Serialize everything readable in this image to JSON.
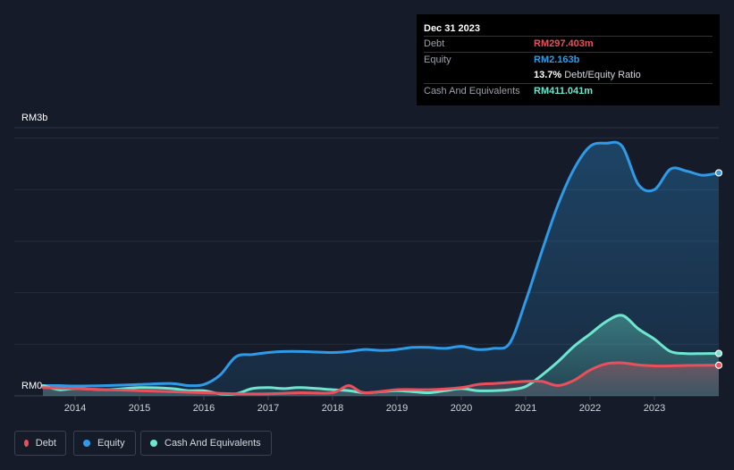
{
  "tooltip": {
    "date": "Dec 31 2023",
    "rows": [
      {
        "label": "Debt",
        "value": "RM297.403m",
        "color": "#e8505b"
      },
      {
        "label": "Equity",
        "value": "RM2.163b",
        "color": "#2f9be8"
      },
      {
        "label": "",
        "value": "13.7%",
        "suffix": "Debt/Equity Ratio",
        "color": "#ffffff"
      },
      {
        "label": "Cash And Equivalents",
        "value": "RM411.041m",
        "color": "#6ee6cf"
      }
    ]
  },
  "legend": [
    {
      "label": "Debt",
      "color": "#e8505b"
    },
    {
      "label": "Equity",
      "color": "#2f9be8"
    },
    {
      "label": "Cash And Equivalents",
      "color": "#6ee6cf"
    }
  ],
  "chart_data": {
    "type": "area",
    "title": "",
    "xlabel": "",
    "ylabel": "",
    "y_top_label": "RM3b",
    "y_bottom_label": "RM0",
    "ylim": [
      0,
      2.6
    ],
    "xlim": [
      2013.5,
      2024.0
    ],
    "x_ticks": [
      "2014",
      "2015",
      "2016",
      "2017",
      "2018",
      "2019",
      "2020",
      "2021",
      "2022",
      "2023"
    ],
    "gridlines": [
      0.5,
      1.0,
      1.5,
      2.0,
      2.5
    ],
    "series": [
      {
        "name": "Equity",
        "color": "#2f9be8",
        "x": [
          2013.5,
          2013.75,
          2014.0,
          2014.5,
          2015.0,
          2015.5,
          2015.75,
          2016.0,
          2016.25,
          2016.5,
          2016.75,
          2017.0,
          2017.25,
          2017.5,
          2018.0,
          2018.25,
          2018.5,
          2018.75,
          2019.0,
          2019.25,
          2019.5,
          2019.75,
          2020.0,
          2020.25,
          2020.5,
          2020.75,
          2021.0,
          2021.25,
          2021.5,
          2021.75,
          2022.0,
          2022.25,
          2022.5,
          2022.75,
          2023.0,
          2023.25,
          2023.5,
          2023.75,
          2024.0
        ],
        "values": [
          0.1,
          0.1,
          0.095,
          0.1,
          0.11,
          0.12,
          0.1,
          0.11,
          0.2,
          0.38,
          0.4,
          0.42,
          0.43,
          0.43,
          0.42,
          0.43,
          0.45,
          0.44,
          0.45,
          0.47,
          0.47,
          0.46,
          0.48,
          0.45,
          0.46,
          0.51,
          0.92,
          1.4,
          1.85,
          2.2,
          2.42,
          2.45,
          2.42,
          2.05,
          2.0,
          2.2,
          2.18,
          2.14,
          2.163
        ]
      },
      {
        "name": "Cash And Equivalents",
        "color": "#6ee6cf",
        "x": [
          2013.5,
          2013.75,
          2014.0,
          2014.5,
          2015.0,
          2015.5,
          2015.75,
          2016.0,
          2016.25,
          2016.5,
          2016.75,
          2017.0,
          2017.25,
          2017.5,
          2018.0,
          2018.25,
          2018.5,
          2018.75,
          2019.0,
          2019.25,
          2019.5,
          2019.75,
          2020.0,
          2020.25,
          2020.5,
          2020.75,
          2021.0,
          2021.25,
          2021.5,
          2021.75,
          2022.0,
          2022.25,
          2022.5,
          2022.75,
          2023.0,
          2023.25,
          2023.5,
          2023.75,
          2024.0
        ],
        "values": [
          0.1,
          0.06,
          0.07,
          0.06,
          0.08,
          0.07,
          0.05,
          0.05,
          0.02,
          0.02,
          0.07,
          0.08,
          0.07,
          0.08,
          0.06,
          0.05,
          0.03,
          0.04,
          0.05,
          0.04,
          0.03,
          0.05,
          0.07,
          0.05,
          0.05,
          0.06,
          0.09,
          0.2,
          0.33,
          0.48,
          0.6,
          0.72,
          0.78,
          0.65,
          0.55,
          0.43,
          0.41,
          0.41,
          0.411
        ]
      },
      {
        "name": "Debt",
        "color": "#e8505b",
        "x": [
          2013.5,
          2014.0,
          2015.0,
          2016.0,
          2016.5,
          2017.0,
          2017.5,
          2018.0,
          2018.25,
          2018.5,
          2019.0,
          2019.5,
          2020.0,
          2020.25,
          2020.5,
          2020.75,
          2021.0,
          2021.25,
          2021.5,
          2021.75,
          2022.0,
          2022.25,
          2022.5,
          2022.75,
          2023.0,
          2023.25,
          2023.5,
          2024.0
        ],
        "values": [
          0.08,
          0.07,
          0.05,
          0.03,
          0.02,
          0.02,
          0.03,
          0.03,
          0.1,
          0.03,
          0.06,
          0.06,
          0.08,
          0.11,
          0.12,
          0.13,
          0.14,
          0.14,
          0.1,
          0.15,
          0.25,
          0.31,
          0.32,
          0.3,
          0.29,
          0.29,
          0.295,
          0.297
        ]
      }
    ]
  }
}
